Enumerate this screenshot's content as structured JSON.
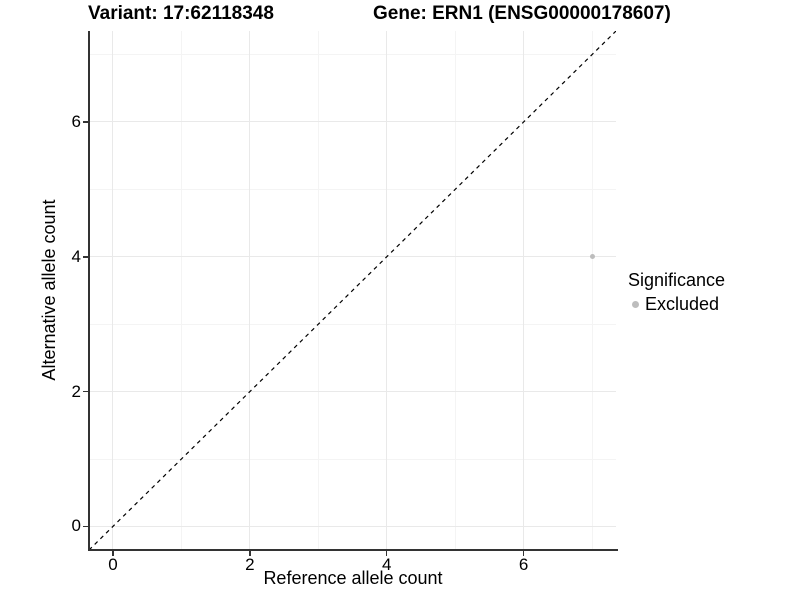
{
  "title": {
    "variant": "Variant: 17:62118348",
    "gene": "Gene: ERN1 (ENSG00000178607)"
  },
  "chart_data": {
    "type": "scatter",
    "title": "Variant: 17:62118348  /  Gene: ERN1 (ENSG00000178607)",
    "xlabel": "Reference allele count",
    "ylabel": "Alternative allele count",
    "xlim": [
      -0.35,
      7.35
    ],
    "ylim": [
      -0.35,
      7.35
    ],
    "x_ticks": [
      0,
      2,
      4,
      6
    ],
    "y_ticks": [
      0,
      2,
      4,
      6
    ],
    "x_minor_ticks": [
      1,
      3,
      5,
      7
    ],
    "y_minor_ticks": [
      1,
      3,
      5,
      7
    ],
    "grid": true,
    "legend_position": "right",
    "series": [
      {
        "name": "Excluded",
        "color": "#bdbdbd",
        "points": [
          {
            "x": 7,
            "y": 4
          }
        ]
      }
    ],
    "reference_line": {
      "type": "identity",
      "style": "dashed",
      "color": "#000000",
      "from": [
        -0.35,
        -0.35
      ],
      "to": [
        7.35,
        7.35
      ]
    }
  },
  "legend": {
    "title": "Significance",
    "items": [
      {
        "label": "Excluded",
        "color": "#bdbdbd"
      }
    ]
  },
  "colors": {
    "background": "#ffffff",
    "axis_line": "#333333",
    "grid_major": "#e9e9e9",
    "grid_minor": "#f4f4f4",
    "text": "#000000",
    "point": "#bdbdbd",
    "dashed_line": "#000000"
  }
}
